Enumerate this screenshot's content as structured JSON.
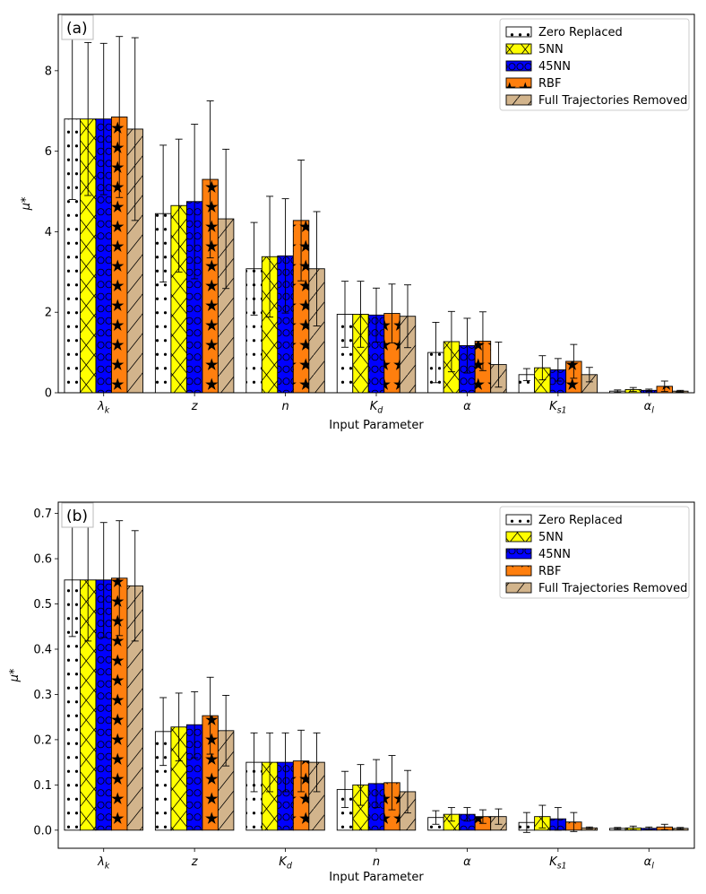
{
  "chart_data": [
    {
      "type": "bar",
      "panel_label": "(a)",
      "title": "",
      "xlabel": "Input Parameter",
      "ylabel": "μ*",
      "ylim": [
        0,
        9.4
      ],
      "yticks": [
        0,
        2,
        4,
        6,
        8
      ],
      "ytick_labels": [
        "0",
        "2",
        "4",
        "6",
        "8"
      ],
      "categories": [
        "λk",
        "z",
        "n",
        "Kd",
        "α",
        "Ks1",
        "αl"
      ],
      "category_labels": [
        {
          "base": "λ",
          "sub": "k"
        },
        {
          "base": "z",
          "sub": ""
        },
        {
          "base": "n",
          "sub": ""
        },
        {
          "base": "K",
          "sub": "d"
        },
        {
          "base": "α",
          "sub": ""
        },
        {
          "base": "K",
          "sub": "s1"
        },
        {
          "base": "α",
          "sub": "l"
        }
      ],
      "legend_position": "top-right",
      "series": [
        {
          "name": "Zero Replaced",
          "values": [
            6.8,
            4.45,
            3.08,
            1.95,
            1.0,
            0.45,
            0.04
          ],
          "errors": [
            2.0,
            1.7,
            1.15,
            0.82,
            0.75,
            0.15,
            0.03
          ]
        },
        {
          "name": "5NN",
          "values": [
            6.8,
            4.65,
            3.38,
            1.95,
            1.27,
            0.62,
            0.08
          ],
          "errors": [
            1.9,
            1.65,
            1.5,
            0.82,
            0.75,
            0.3,
            0.05
          ]
        },
        {
          "name": "45NN",
          "values": [
            6.8,
            4.75,
            3.4,
            1.93,
            1.17,
            0.57,
            0.06
          ],
          "errors": [
            1.88,
            1.92,
            1.42,
            0.67,
            0.68,
            0.28,
            0.03
          ]
        },
        {
          "name": "RBF",
          "values": [
            6.85,
            5.3,
            4.28,
            1.97,
            1.28,
            0.78,
            0.16
          ],
          "errors": [
            2.0,
            1.95,
            1.5,
            0.73,
            0.73,
            0.42,
            0.13
          ]
        },
        {
          "name": "Full Trajectories Removed",
          "values": [
            6.55,
            4.32,
            3.08,
            1.9,
            0.7,
            0.45,
            0.04
          ],
          "errors": [
            2.27,
            1.73,
            1.42,
            0.78,
            0.56,
            0.18,
            0.02
          ]
        }
      ]
    },
    {
      "type": "bar",
      "panel_label": "(b)",
      "title": "",
      "xlabel": "Input Parameter",
      "ylabel": "μ*",
      "ylim": [
        -0.04,
        0.725
      ],
      "yticks": [
        0,
        0.1,
        0.2,
        0.3,
        0.4,
        0.5,
        0.6,
        0.7
      ],
      "ytick_labels": [
        "0.0",
        "0.1",
        "0.2",
        "0.3",
        "0.4",
        "0.5",
        "0.6",
        "0.7"
      ],
      "categories": [
        "λk",
        "z",
        "Kd",
        "n",
        "α",
        "Ks1",
        "αl"
      ],
      "category_labels": [
        {
          "base": "λ",
          "sub": "k"
        },
        {
          "base": "z",
          "sub": ""
        },
        {
          "base": "K",
          "sub": "d"
        },
        {
          "base": "n",
          "sub": ""
        },
        {
          "base": "α",
          "sub": ""
        },
        {
          "base": "K",
          "sub": "s1"
        },
        {
          "base": "α",
          "sub": "l"
        }
      ],
      "legend_position": "top-right",
      "series": [
        {
          "name": "Zero Replaced",
          "values": [
            0.553,
            0.218,
            0.15,
            0.09,
            0.028,
            0.017,
            0.004
          ],
          "errors": [
            0.125,
            0.075,
            0.065,
            0.04,
            0.015,
            0.022,
            0.002
          ]
        },
        {
          "name": "5NN",
          "values": [
            0.553,
            0.228,
            0.15,
            0.1,
            0.035,
            0.03,
            0.005
          ],
          "errors": [
            0.135,
            0.075,
            0.065,
            0.045,
            0.015,
            0.025,
            0.004
          ]
        },
        {
          "name": "45NN",
          "values": [
            0.553,
            0.233,
            0.15,
            0.103,
            0.035,
            0.025,
            0.004
          ],
          "errors": [
            0.127,
            0.073,
            0.065,
            0.053,
            0.015,
            0.025,
            0.003
          ]
        },
        {
          "name": "RBF",
          "values": [
            0.557,
            0.253,
            0.153,
            0.105,
            0.03,
            0.018,
            0.007
          ],
          "errors": [
            0.127,
            0.085,
            0.068,
            0.06,
            0.015,
            0.021,
            0.006
          ]
        },
        {
          "name": "Full Trajectories Removed",
          "values": [
            0.54,
            0.22,
            0.15,
            0.085,
            0.03,
            0.005,
            0.004
          ],
          "errors": [
            0.122,
            0.078,
            0.065,
            0.047,
            0.017,
            0.002,
            0.002
          ]
        }
      ]
    }
  ],
  "legend_style": {
    "colors": [
      "#ffffff",
      "#ffff00",
      "#0000ff",
      "#ff7f0e",
      "#d2b48c"
    ],
    "hatches": [
      "dots",
      "cross",
      "circles",
      "stars",
      "slash"
    ]
  }
}
